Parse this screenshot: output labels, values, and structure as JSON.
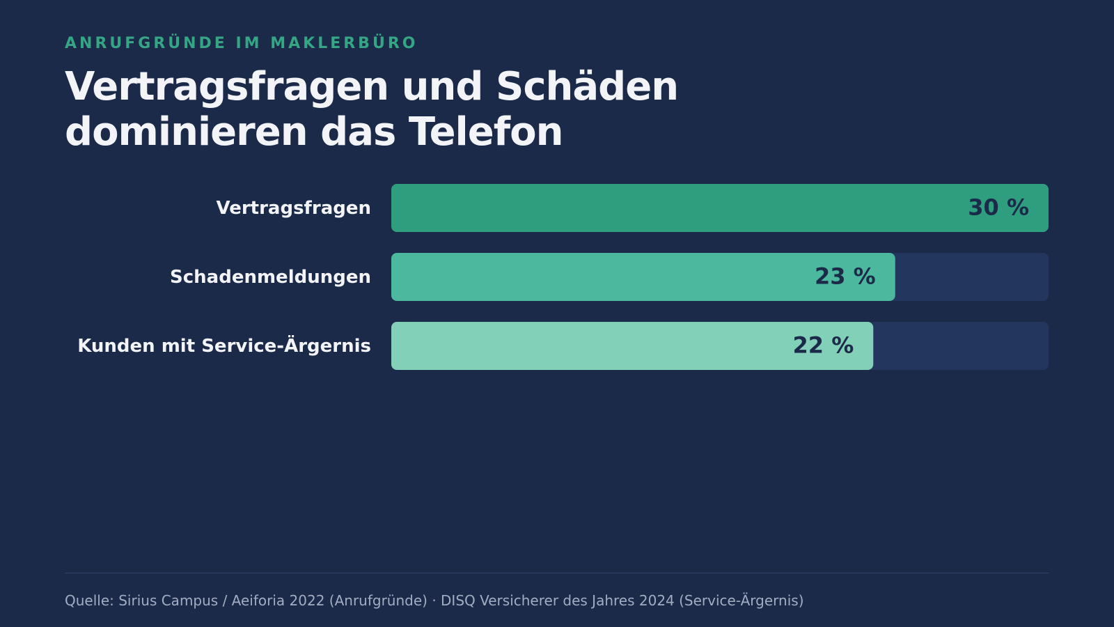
{
  "chart_data": {
    "type": "bar",
    "orientation": "horizontal",
    "kicker": "ANRUFGRÜNDE IM MAKLERBÜRO",
    "title": "Vertragsfragen und Schäden dominieren das Telefon",
    "categories": [
      "Vertragsfragen",
      "Schadenmeldungen",
      "Kunden mit Service-Ärgernis"
    ],
    "values": [
      30,
      23,
      22
    ],
    "value_labels": [
      "30 %",
      "23 %",
      "22 %"
    ],
    "colors": [
      "#2e9e7e",
      "#4cb89e",
      "#82d0b8"
    ],
    "track_color": "#22365e",
    "xlim": [
      0,
      30
    ],
    "source": "Quelle: Sirius Campus / Aeiforia 2022 (Anrufgründe) · DISQ Versicherer des Jahres 2024 (Service-Ärgernis)"
  }
}
